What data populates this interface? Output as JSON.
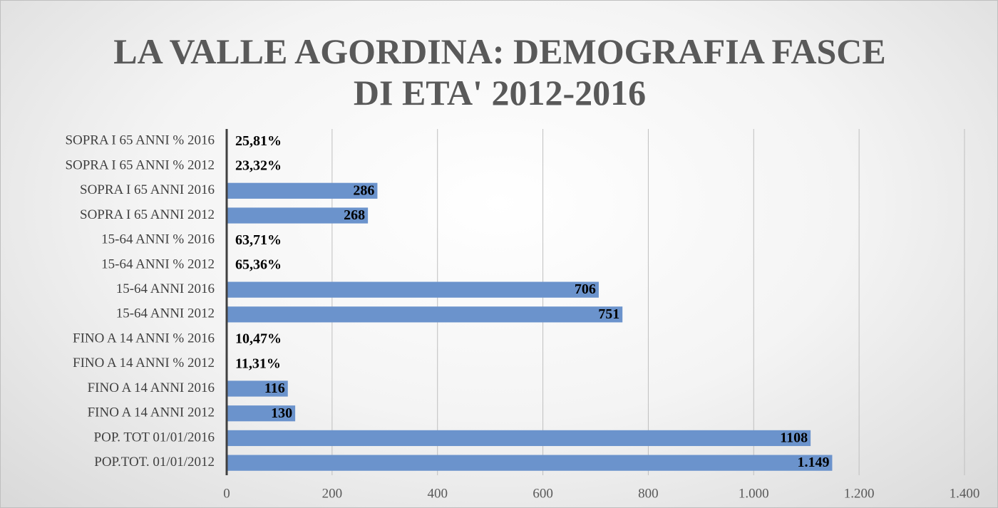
{
  "chart_data": {
    "type": "bar",
    "orientation": "horizontal",
    "title": "LA VALLE AGORDINA: DEMOGRAFIA FASCE DI ETA' 2012-2016",
    "categories": [
      "SOPRA I 65 ANNI % 2016",
      "SOPRA I 65 ANNI % 2012",
      "SOPRA I 65 ANNI 2016",
      "SOPRA I 65 ANNI 2012",
      "15-64 ANNI % 2016",
      "15-64 ANNI % 2012",
      "15-64 ANNI 2016",
      "15-64 ANNI 2012",
      "FINO A 14 ANNI % 2016",
      "FINO A 14 ANNI % 2012",
      "FINO A 14 ANNI 2016",
      "FINO A 14 ANNI 2012",
      "POP. TOT 01/01/2016",
      "POP.TOT. 01/01/2012"
    ],
    "values": [
      0.2581,
      0.2332,
      286,
      268,
      0.6371,
      0.6536,
      706,
      751,
      0.1047,
      0.1131,
      116,
      130,
      1108,
      1149
    ],
    "value_labels": [
      "25,81%",
      "23,32%",
      "286",
      "268",
      "63,71%",
      "65,36%",
      "706",
      "751",
      "10,47%",
      "11,31%",
      "116",
      "130",
      "1108",
      "1.149"
    ],
    "color": "#6b93cc",
    "xlim": [
      0,
      1400
    ],
    "xticks": [
      0,
      200,
      400,
      600,
      800,
      {
        "value": 1000,
        "label": "1.000"
      },
      {
        "value": 1200,
        "label": "1.200"
      },
      {
        "value": 1400,
        "label": "1.400"
      }
    ],
    "grid": true
  }
}
